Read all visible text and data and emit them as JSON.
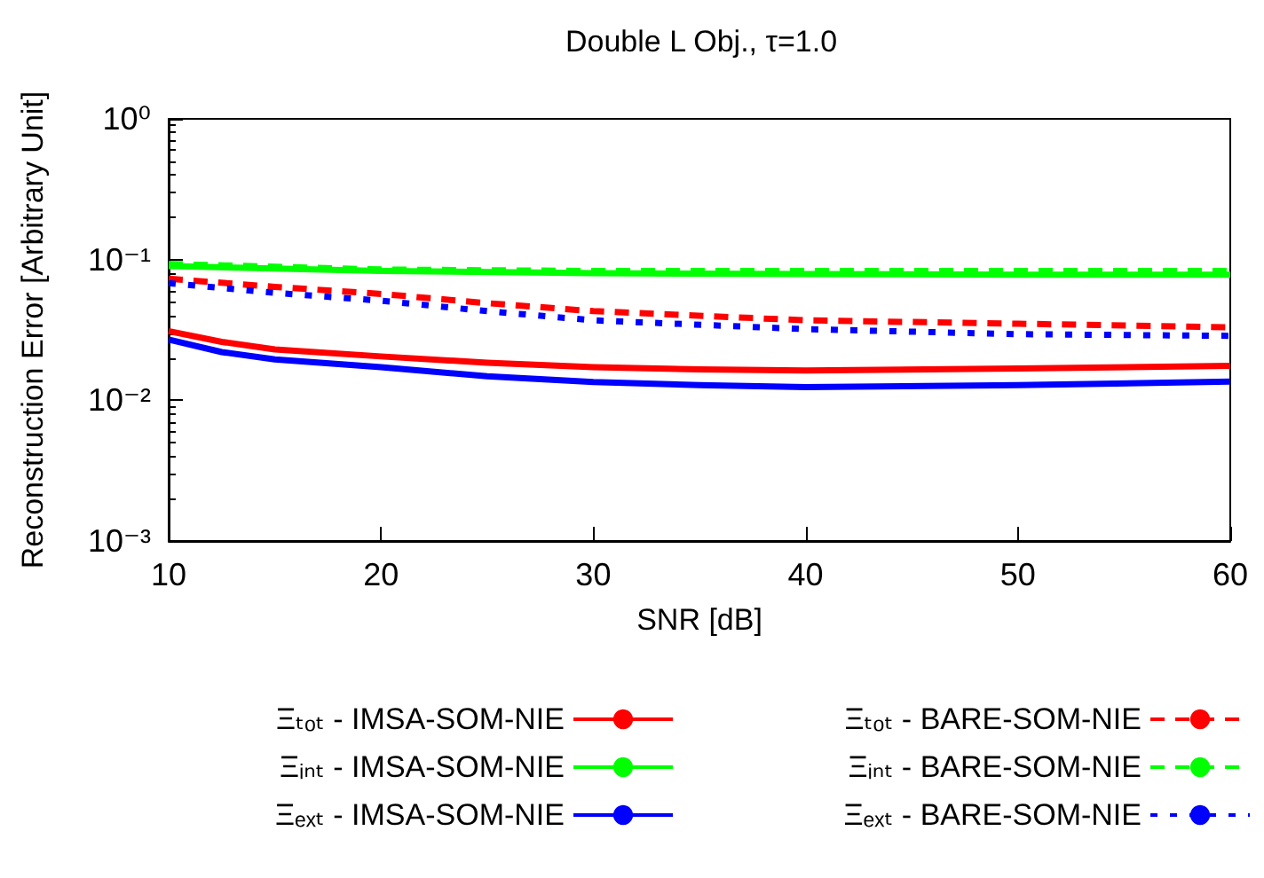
{
  "chart_data": {
    "type": "line",
    "title": "Double L Obj., τ=1.0",
    "xlabel": "SNR [dB]",
    "ylabel": "Reconstruction Error [Arbitrary Unit]",
    "log": "y",
    "xlim": [
      10,
      60
    ],
    "xticks": [
      10,
      20,
      30,
      40,
      50,
      60
    ],
    "ylim": [
      0.001,
      1
    ],
    "yticks": [
      {
        "value": 0.001,
        "label": "10⁻³"
      },
      {
        "value": 0.01,
        "label": "10⁻²"
      },
      {
        "value": 0.1,
        "label": "10⁻¹"
      },
      {
        "value": 1,
        "label": "10⁰"
      }
    ],
    "legend": "bottom",
    "marker": "none",
    "series": [
      {
        "name": "Ξₜₒₜ - IMSA-SOM-NIE",
        "color": "#ff0000",
        "line_style": "solid",
        "x": [
          10,
          12.5,
          15,
          20,
          25,
          30,
          35,
          40,
          50,
          60
        ],
        "values": [
          0.031,
          0.026,
          0.023,
          0.0205,
          0.0185,
          0.0172,
          0.0166,
          0.0163,
          0.0168,
          0.0176
        ]
      },
      {
        "name": "Ξᵢₙₜ - IMSA-SOM-NIE",
        "color": "#00ff00",
        "line_style": "solid",
        "x": [
          10,
          20,
          30,
          40,
          50,
          60
        ],
        "values": [
          0.09,
          0.083,
          0.08,
          0.079,
          0.078,
          0.078
        ]
      },
      {
        "name": "Ξₑₓₜ - IMSA-SOM-NIE",
        "color": "#0000ff",
        "line_style": "solid",
        "x": [
          10,
          12.5,
          15,
          20,
          25,
          30,
          35,
          40,
          50,
          60
        ],
        "values": [
          0.027,
          0.022,
          0.0195,
          0.0172,
          0.0148,
          0.0135,
          0.0128,
          0.0124,
          0.0128,
          0.0136
        ]
      },
      {
        "name": "Ξₜₒₜ - BARE-SOM-NIE",
        "color": "#ff0000",
        "line_style": "dashed",
        "x": [
          10,
          15,
          20,
          25,
          30,
          40,
          50,
          60
        ],
        "values": [
          0.073,
          0.064,
          0.057,
          0.049,
          0.043,
          0.037,
          0.035,
          0.033
        ]
      },
      {
        "name": "Ξᵢₙₜ - BARE-SOM-NIE",
        "color": "#00ff00",
        "line_style": "dashed",
        "x": [
          10,
          20,
          30,
          40,
          50,
          60
        ],
        "values": [
          0.093,
          0.085,
          0.083,
          0.083,
          0.083,
          0.083
        ]
      },
      {
        "name": "Ξₑₓₜ - BARE-SOM-NIE",
        "color": "#0000ff",
        "line_style": "dotted",
        "x": [
          10,
          15,
          20,
          25,
          30,
          40,
          50,
          60
        ],
        "values": [
          0.068,
          0.058,
          0.051,
          0.043,
          0.037,
          0.032,
          0.0295,
          0.0287
        ]
      }
    ]
  }
}
